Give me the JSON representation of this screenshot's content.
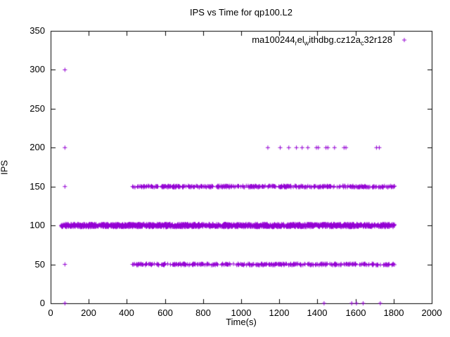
{
  "chart_data": {
    "type": "scatter",
    "title": "IPS vs Time for qp100.L2",
    "xlabel": "Time(s)",
    "ylabel": "IPS",
    "xlim": [
      0,
      2000
    ],
    "ylim": [
      0,
      350
    ],
    "xticks": [
      0,
      200,
      400,
      600,
      800,
      1000,
      1200,
      1400,
      1600,
      1800,
      2000
    ],
    "yticks": [
      0,
      50,
      100,
      150,
      200,
      250,
      300,
      350
    ],
    "grid": false,
    "legend_position": "top-right-inside",
    "marker": {
      "shape": "plus",
      "color": "#9400D3",
      "size": 7
    },
    "series": [
      {
        "name": "ma100244_rel_withdbg.cz12a_c32r128",
        "label_parts": [
          {
            "t": "ma100244"
          },
          {
            "s": "r"
          },
          {
            "t": "el"
          },
          {
            "s": "w"
          },
          {
            "t": "ithdbg.cz12a"
          },
          {
            "s": "c"
          },
          {
            "t": "32r128"
          }
        ],
        "bands": [
          {
            "y": 100,
            "x_start": 55,
            "x_end": 1805,
            "count": 1400,
            "y_jitter": 2
          },
          {
            "y": 150,
            "x_start": 430,
            "x_end": 1805,
            "count": 380,
            "y_jitter": 1
          },
          {
            "y": 50,
            "x_start": 430,
            "x_end": 1805,
            "count": 320,
            "y_jitter": 1
          }
        ],
        "points": [
          [
            75,
            0
          ],
          [
            75,
            50
          ],
          [
            75,
            100
          ],
          [
            75,
            150
          ],
          [
            75,
            200
          ],
          [
            75,
            300
          ],
          [
            430,
            50
          ],
          [
            430,
            150
          ],
          [
            1140,
            200
          ],
          [
            1205,
            200
          ],
          [
            1250,
            200
          ],
          [
            1290,
            200
          ],
          [
            1320,
            200
          ],
          [
            1350,
            200
          ],
          [
            1395,
            200
          ],
          [
            1405,
            200
          ],
          [
            1445,
            200
          ],
          [
            1455,
            200
          ],
          [
            1490,
            200
          ],
          [
            1540,
            200
          ],
          [
            1550,
            200
          ],
          [
            1710,
            200
          ],
          [
            1725,
            200
          ],
          [
            1435,
            0
          ],
          [
            1580,
            0
          ],
          [
            1605,
            0
          ],
          [
            1640,
            0
          ],
          [
            1730,
            0
          ]
        ]
      }
    ]
  }
}
